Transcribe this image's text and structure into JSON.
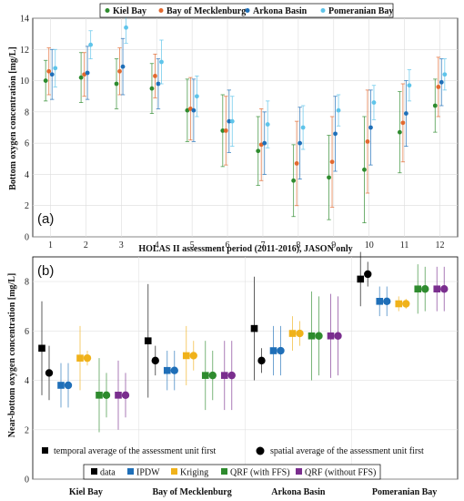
{
  "chart_data": [
    {
      "type": "scatter",
      "panel_label": "(a)",
      "xlabel": "HOLAS II assessment period (2011-2016), JASON only",
      "ylabel": "Bottom oxygen concentration [mg/L]",
      "xlim": [
        0.5,
        12.5
      ],
      "ylim": [
        0,
        14
      ],
      "xticks": [
        "1",
        "2",
        "3",
        "4",
        "5",
        "6",
        "7",
        "8",
        "9",
        "10",
        "11",
        "12"
      ],
      "yticks": [
        "0",
        "2",
        "4",
        "6",
        "8",
        "10",
        "12",
        "14"
      ],
      "grid": true,
      "legend_position": "top-center",
      "colors": {
        "Kiel Bay": "#2e8b2e",
        "Bay of Mecklenburg": "#e2692f",
        "Arkona Basin": "#1f6fb8",
        "Pomeranian Bay": "#5ec4ea"
      },
      "series": [
        {
          "name": "Kiel Bay",
          "values": [
            10.0,
            10.2,
            9.8,
            9.5,
            8.1,
            6.8,
            5.5,
            3.6,
            3.8,
            4.3,
            6.7,
            8.4
          ],
          "err": [
            1.3,
            1.6,
            1.6,
            1.6,
            2.0,
            2.3,
            2.2,
            2.3,
            2.7,
            3.4,
            2.6,
            1.7
          ]
        },
        {
          "name": "Bay of Mecklenburg",
          "values": [
            10.6,
            10.4,
            10.6,
            10.3,
            8.2,
            6.8,
            5.9,
            4.7,
            4.8,
            6.1,
            7.3,
            9.6
          ],
          "err": [
            1.5,
            1.4,
            1.5,
            1.4,
            2.0,
            2.2,
            2.3,
            2.7,
            2.9,
            3.3,
            2.5,
            1.9
          ]
        },
        {
          "name": "Arkona Basin",
          "values": [
            10.4,
            10.5,
            10.9,
            9.8,
            8.1,
            7.4,
            6.0,
            6.0,
            6.6,
            7.0,
            7.9,
            9.9
          ],
          "err": [
            1.6,
            1.7,
            1.8,
            1.6,
            2.0,
            2.0,
            2.0,
            2.3,
            2.4,
            2.4,
            2.1,
            1.5
          ]
        },
        {
          "name": "Pomeranian Bay",
          "values": [
            10.8,
            12.3,
            13.4,
            11.2,
            9.0,
            7.4,
            7.2,
            7.0,
            8.1,
            8.6,
            9.7,
            10.4
          ],
          "err": [
            1.2,
            0.9,
            1.0,
            1.4,
            1.3,
            1.6,
            1.5,
            1.4,
            1.0,
            1.1,
            1.0,
            1.0
          ]
        }
      ]
    },
    {
      "type": "scatter",
      "panel_label": "(b)",
      "ylabel": "Near-bottom oxygen concentration [mg/L]",
      "categories": [
        "Kiel Bay",
        "Bay of Mecklenburg",
        "Arkona Basin",
        "Pomeranian Bay"
      ],
      "ylim": [
        0,
        9
      ],
      "yticks": [
        "0",
        "2",
        "4",
        "6",
        "8"
      ],
      "grid": true,
      "marker_legend": [
        "temporal average of the assessment unit first",
        "spatial average of the assessment unit first"
      ],
      "legend_position": "bottom",
      "colors": {
        "data": "#000000",
        "IPDW": "#1f6fb8",
        "Kriging": "#f0b21a",
        "QRF (with FFS)": "#2e8b2e",
        "QRF (without FFS)": "#7a2e8e"
      },
      "series": [
        {
          "name": "data",
          "temporal": [
            5.3,
            5.6,
            6.1,
            8.1
          ],
          "spatial": [
            4.3,
            4.8,
            4.8,
            8.3
          ],
          "temporal_err": [
            1.9,
            2.3,
            2.1,
            1.1
          ],
          "spatial_err": [
            1.1,
            0.6,
            0.5,
            0.5
          ]
        },
        {
          "name": "IPDW",
          "temporal": [
            3.8,
            4.4,
            5.2,
            7.2
          ],
          "spatial": [
            3.8,
            4.4,
            5.2,
            7.2
          ],
          "temporal_err": [
            0.9,
            0.8,
            1.0,
            0.6
          ],
          "spatial_err": [
            0.9,
            0.8,
            1.0,
            0.6
          ]
        },
        {
          "name": "Kriging",
          "temporal": [
            4.9,
            5.0,
            5.9,
            7.1
          ],
          "spatial": [
            4.9,
            5.0,
            5.9,
            7.1
          ],
          "temporal_err": [
            1.3,
            1.2,
            0.7,
            0.3
          ],
          "spatial_err": [
            0.3,
            0.6,
            0.5,
            0.2
          ]
        },
        {
          "name": "QRF (with FFS)",
          "temporal": [
            3.4,
            4.2,
            5.8,
            7.7
          ],
          "spatial": [
            3.4,
            4.2,
            5.8,
            7.7
          ],
          "temporal_err": [
            1.5,
            1.4,
            1.8,
            1.0
          ],
          "spatial_err": [
            0.9,
            1.0,
            1.6,
            0.9
          ]
        },
        {
          "name": "QRF (without FFS)",
          "temporal": [
            3.4,
            4.2,
            5.8,
            7.7
          ],
          "spatial": [
            3.4,
            4.2,
            5.8,
            7.7
          ],
          "temporal_err": [
            1.4,
            1.4,
            1.7,
            0.9
          ],
          "spatial_err": [
            0.9,
            1.4,
            1.6,
            0.9
          ]
        }
      ]
    }
  ]
}
